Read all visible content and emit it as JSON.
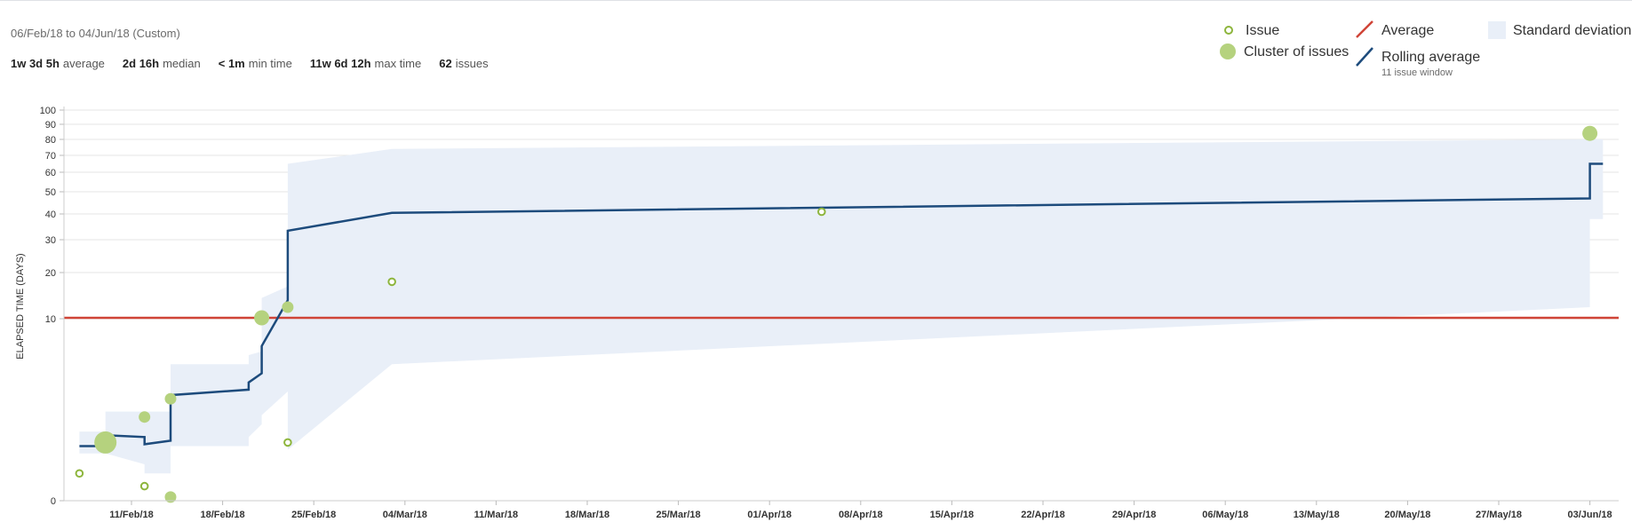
{
  "header": {
    "date_range": "06/Feb/18 to 04/Jun/18 (Custom)",
    "stats": [
      {
        "value": "1w 3d 5h",
        "label": "average"
      },
      {
        "value": "2d 16h",
        "label": "median"
      },
      {
        "value": "< 1m",
        "label": "min time"
      },
      {
        "value": "11w 6d 12h",
        "label": "max time"
      },
      {
        "value": "62",
        "label": "issues"
      }
    ]
  },
  "legend": {
    "issue": "Issue",
    "cluster": "Cluster of issues",
    "average": "Average",
    "rolling_average": "Rolling average",
    "rolling_window": "11 issue window",
    "std_dev": "Standard deviation"
  },
  "colors": {
    "issue": "#8db53c",
    "cluster": "#b5d27e",
    "average": "#d04437",
    "rolling": "#1d4b7c",
    "std_dev": "#e9eff8",
    "grid": "#e5e5e5"
  },
  "chart_data": {
    "type": "scatter",
    "title": "",
    "xlabel": "",
    "ylabel": "ELAPSED TIME (DAYS)",
    "y_ticks": [
      "0",
      "10",
      "20",
      "30",
      "40",
      "50",
      "60",
      "70",
      "80",
      "90",
      "100"
    ],
    "x_ticks": [
      "11/Feb/18",
      "18/Feb/18",
      "25/Feb/18",
      "04/Mar/18",
      "11/Mar/18",
      "18/Mar/18",
      "25/Mar/18",
      "01/Apr/18",
      "08/Apr/18",
      "15/Apr/18",
      "22/Apr/18",
      "29/Apr/18",
      "06/May/18",
      "13/May/18",
      "20/May/18",
      "27/May/18",
      "03/Jun/18"
    ],
    "x_range": [
      "2018-02-06",
      "2018-06-04"
    ],
    "grid": true,
    "legend_position": "top-right",
    "average_days": 10.2,
    "issues": [
      {
        "date": "2018-02-07",
        "days": 1.5
      },
      {
        "date": "2018-02-12",
        "days": 0.8
      },
      {
        "date": "2018-02-23",
        "days": 3.2
      },
      {
        "date": "2018-03-03",
        "days": 18
      },
      {
        "date": "2018-04-05",
        "days": 41
      }
    ],
    "clusters": [
      {
        "date": "2018-02-09",
        "days": 3.2,
        "size": "large"
      },
      {
        "date": "2018-02-12",
        "days": 4.6,
        "size": "small"
      },
      {
        "date": "2018-02-14",
        "days": 0.2,
        "size": "small"
      },
      {
        "date": "2018-02-14",
        "days": 5.6,
        "size": "small"
      },
      {
        "date": "2018-02-21",
        "days": 10.2,
        "size": "medium"
      },
      {
        "date": "2018-02-23",
        "days": 12.5,
        "size": "small"
      },
      {
        "date": "2018-06-03",
        "days": 84,
        "size": "medium"
      }
    ],
    "rolling_average": [
      {
        "date": "2018-02-07",
        "days": 3
      },
      {
        "date": "2018-02-09",
        "days": 3
      },
      {
        "date": "2018-02-09",
        "days": 3.6
      },
      {
        "date": "2018-02-12",
        "days": 3.5
      },
      {
        "date": "2018-02-12",
        "days": 3.1
      },
      {
        "date": "2018-02-14",
        "days": 3.3
      },
      {
        "date": "2018-02-14",
        "days": 5.8
      },
      {
        "date": "2018-02-20",
        "days": 6.1
      },
      {
        "date": "2018-02-20",
        "days": 6.5
      },
      {
        "date": "2018-02-21",
        "days": 7.0
      },
      {
        "date": "2018-02-21",
        "days": 8.5
      },
      {
        "date": "2018-02-23",
        "days": 14
      },
      {
        "date": "2018-02-23",
        "days": 33.5
      },
      {
        "date": "2018-03-03",
        "days": 40.5
      },
      {
        "date": "2018-06-03",
        "days": 47
      },
      {
        "date": "2018-06-03",
        "days": 65
      },
      {
        "date": "2018-06-04",
        "days": 65
      }
    ],
    "std_dev_band": {
      "upper": [
        {
          "date": "2018-02-07",
          "days": 3.8
        },
        {
          "date": "2018-02-09",
          "days": 3.8
        },
        {
          "date": "2018-02-09",
          "days": 4.9
        },
        {
          "date": "2018-02-14",
          "days": 4.9
        },
        {
          "date": "2018-02-14",
          "days": 7.5
        },
        {
          "date": "2018-02-20",
          "days": 7.5
        },
        {
          "date": "2018-02-20",
          "days": 8.0
        },
        {
          "date": "2018-02-21",
          "days": 8.2
        },
        {
          "date": "2018-02-21",
          "days": 14.5
        },
        {
          "date": "2018-02-23",
          "days": 17
        },
        {
          "date": "2018-02-23",
          "days": 65
        },
        {
          "date": "2018-03-03",
          "days": 74
        },
        {
          "date": "2018-06-03",
          "days": 80
        },
        {
          "date": "2018-06-04",
          "days": 80
        }
      ],
      "lower": [
        {
          "date": "2018-06-04",
          "days": 38
        },
        {
          "date": "2018-06-03",
          "days": 38
        },
        {
          "date": "2018-06-03",
          "days": 12.5
        },
        {
          "date": "2018-03-03",
          "days": 7.5
        },
        {
          "date": "2018-02-23",
          "days": 2.8
        },
        {
          "date": "2018-02-23",
          "days": 6.0
        },
        {
          "date": "2018-02-21",
          "days": 4.7
        },
        {
          "date": "2018-02-21",
          "days": 4.2
        },
        {
          "date": "2018-02-20",
          "days": 3.5
        },
        {
          "date": "2018-02-20",
          "days": 3.0
        },
        {
          "date": "2018-02-14",
          "days": 3.0
        },
        {
          "date": "2018-02-14",
          "days": 1.5
        },
        {
          "date": "2018-02-12",
          "days": 1.5
        },
        {
          "date": "2018-02-12",
          "days": 2.0
        },
        {
          "date": "2018-02-09",
          "days": 2.6
        },
        {
          "date": "2018-02-07",
          "days": 2.6
        }
      ]
    }
  }
}
